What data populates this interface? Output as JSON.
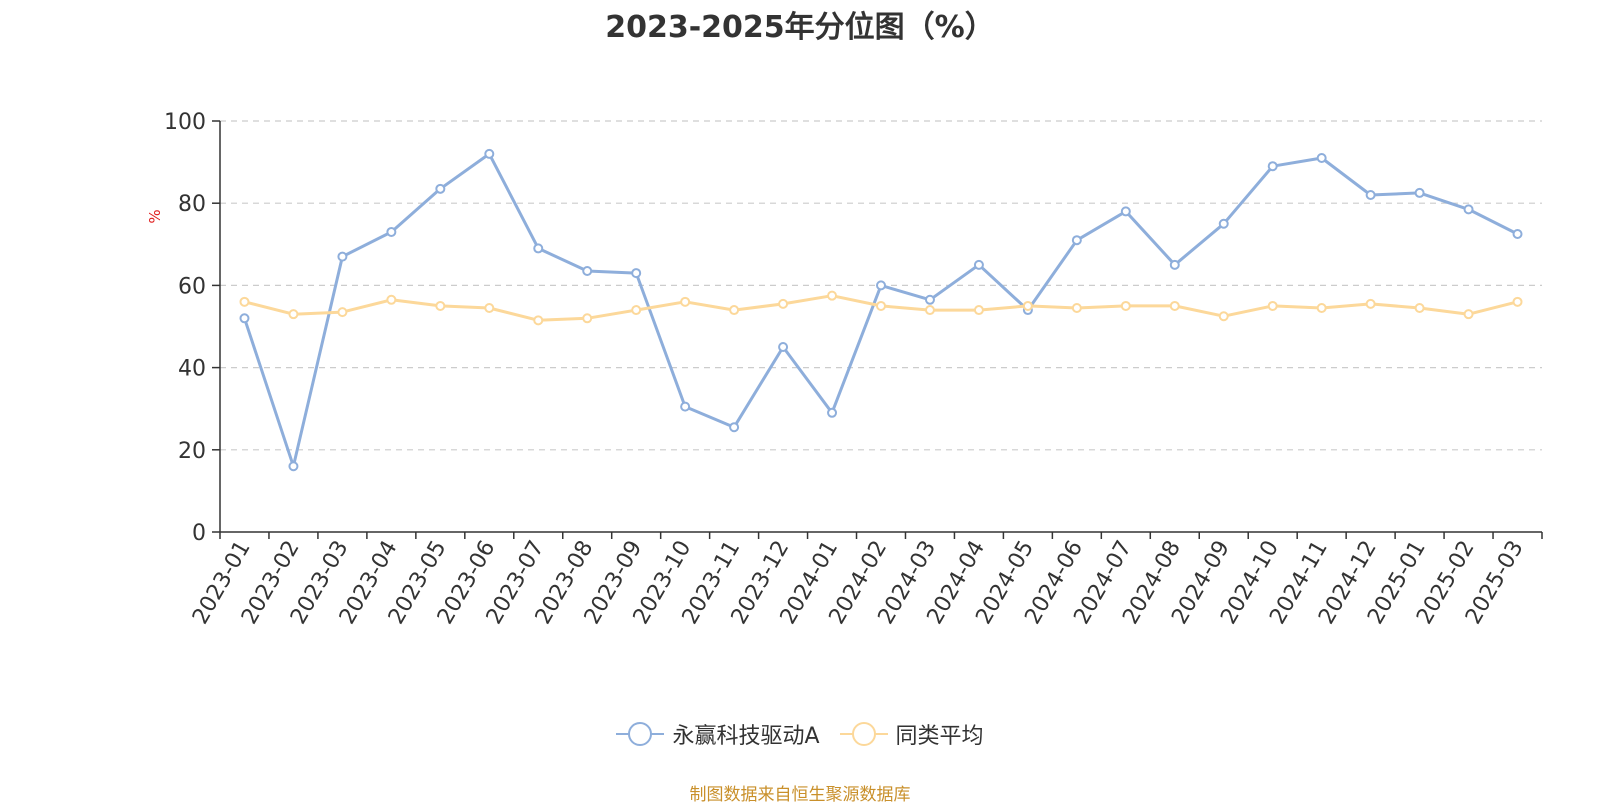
{
  "title": "2023-2025年分位图（%）",
  "source": "制图数据来自恒生聚源数据库",
  "chart_data": {
    "type": "line",
    "ylabel": "%",
    "ylim": [
      0,
      100
    ],
    "yticks": [
      0,
      20,
      40,
      60,
      80,
      100
    ],
    "grid": true,
    "legend_position": "bottom",
    "categories": [
      "2023-01",
      "2023-02",
      "2023-03",
      "2023-04",
      "2023-05",
      "2023-06",
      "2023-07",
      "2023-08",
      "2023-09",
      "2023-10",
      "2023-11",
      "2023-12",
      "2024-01",
      "2024-02",
      "2024-03",
      "2024-04",
      "2024-05",
      "2024-06",
      "2024-07",
      "2024-08",
      "2024-09",
      "2024-10",
      "2024-11",
      "2024-12",
      "2025-01",
      "2025-02",
      "2025-03"
    ],
    "series": [
      {
        "name": "永赢科技驱动A",
        "color": "#8eaedb",
        "values": [
          52,
          16,
          67,
          73,
          83.5,
          92,
          69,
          63.5,
          63,
          30.5,
          25.5,
          45,
          29,
          60,
          56.5,
          65,
          54,
          71,
          78,
          65,
          75,
          89,
          91,
          82,
          82.5,
          78.5,
          72.5
        ]
      },
      {
        "name": "同类平均",
        "color": "#fcd89a",
        "values": [
          56,
          53,
          53.5,
          56.5,
          55,
          54.5,
          51.5,
          52,
          54,
          56,
          54,
          55.5,
          57.5,
          55,
          54,
          54,
          55,
          54.5,
          55,
          55,
          52.5,
          55,
          54.5,
          55.5,
          54.5,
          53,
          56
        ]
      }
    ]
  }
}
